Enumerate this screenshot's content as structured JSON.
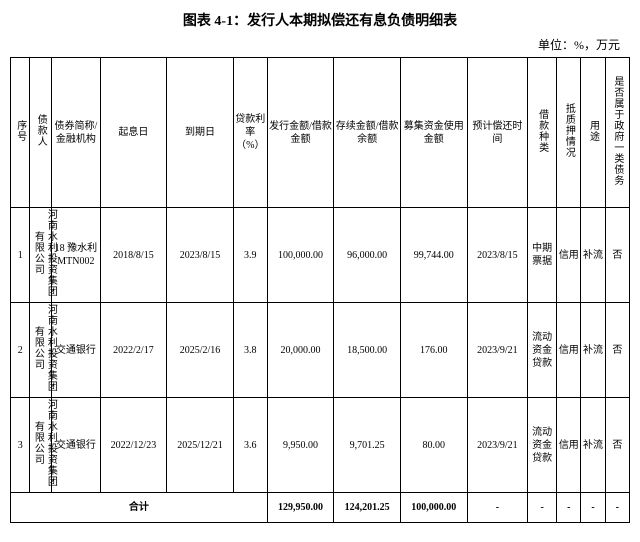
{
  "title": "图表 4-1：发行人本期拟偿还有息负债明细表",
  "unit": "单位：%，万元",
  "headers": {
    "seq": "序号",
    "debtor": "债款人",
    "bond": "债券简称/金融机构",
    "start": "起息日",
    "end": "到期日",
    "rate": "贷款利率（%）",
    "issue": "发行金额/借款金额",
    "balance": "存续金额/借款余额",
    "use": "募集资金使用金额",
    "repay": "预计偿还时间",
    "kind": "借款种类",
    "pledge": "抵质押情况",
    "purpose": "用途",
    "gov": "是否属于政府一类债务"
  },
  "rows": [
    {
      "seq": "1",
      "debtor": "河南水利投资集团有限公司",
      "bond": "18 豫水利 MTN002",
      "start": "2018/8/15",
      "end": "2023/8/15",
      "rate": "3.9",
      "issue": "100,000.00",
      "balance": "96,000.00",
      "use": "99,744.00",
      "repay": "2023/8/15",
      "kind": "中期票据",
      "pledge": "信用",
      "purpose": "补流",
      "gov": "否"
    },
    {
      "seq": "2",
      "debtor": "河南水利投资集团有限公司",
      "bond": "交通银行",
      "start": "2022/2/17",
      "end": "2025/2/16",
      "rate": "3.8",
      "issue": "20,000.00",
      "balance": "18,500.00",
      "use": "176.00",
      "repay": "2023/9/21",
      "kind": "流动资金贷款",
      "pledge": "信用",
      "purpose": "补流",
      "gov": "否"
    },
    {
      "seq": "3",
      "debtor": "河南水利投资集团有限公司",
      "bond": "交通银行",
      "start": "2022/12/23",
      "end": "2025/12/21",
      "rate": "3.6",
      "issue": "9,950.00",
      "balance": "9,701.25",
      "use": "80.00",
      "repay": "2023/9/21",
      "kind": "流动资金贷款",
      "pledge": "信用",
      "purpose": "补流",
      "gov": "否"
    }
  ],
  "total": {
    "label": "合计",
    "issue": "129,950.00",
    "balance": "124,201.25",
    "use": "100,000.00",
    "repay": "-",
    "kind": "-",
    "pledge": "-",
    "purpose": "-",
    "gov": "-"
  }
}
